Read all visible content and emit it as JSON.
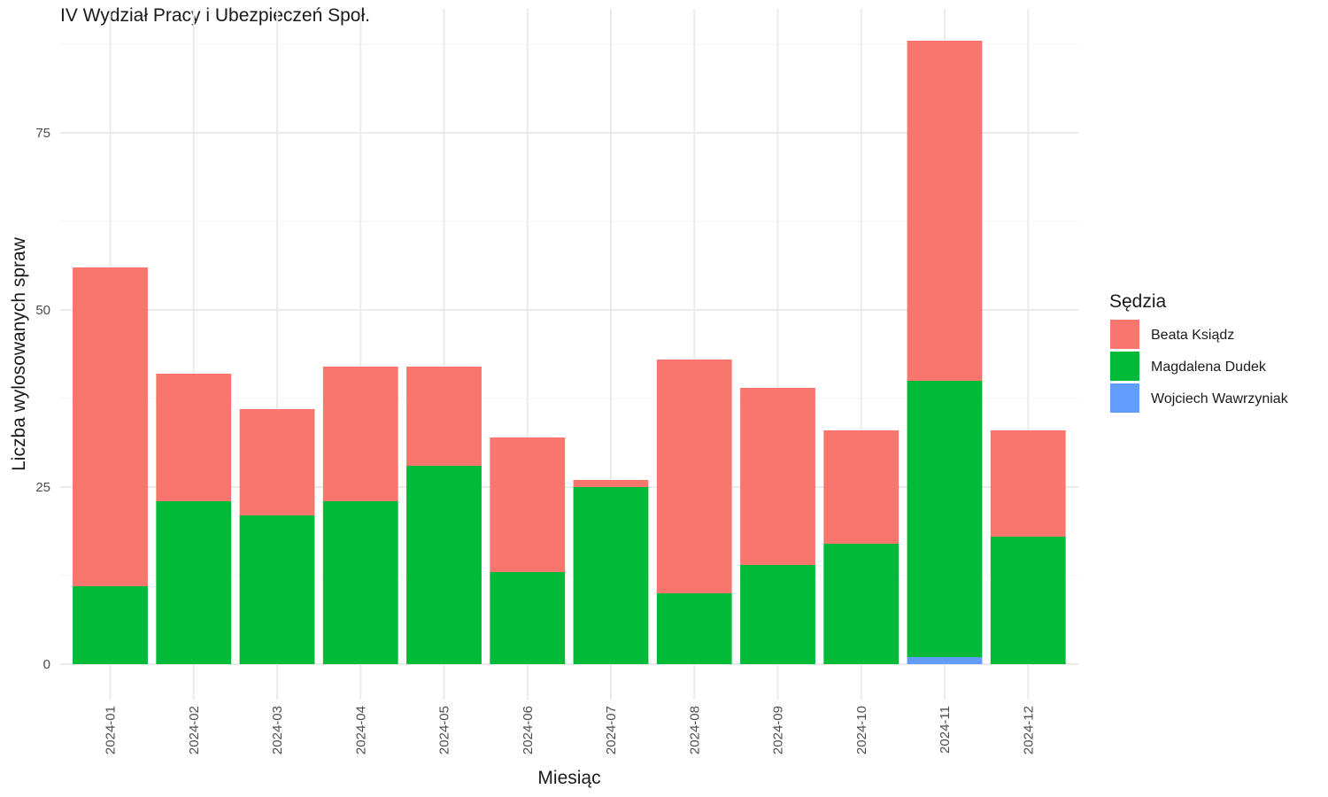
{
  "chart_data": {
    "type": "bar",
    "stacked": true,
    "title": "IV Wydział Pracy i Ubezpieczeń Społ.",
    "xlabel": "Miesiąc",
    "ylabel": "Liczba wylosowanych spraw",
    "categories": [
      "2024-01",
      "2024-02",
      "2024-03",
      "2024-04",
      "2024-05",
      "2024-06",
      "2024-07",
      "2024-08",
      "2024-09",
      "2024-10",
      "2024-11",
      "2024-12"
    ],
    "series": [
      {
        "name": "Beata Ksiądz",
        "color": "#F8766D",
        "values": [
          45,
          18,
          15,
          19,
          14,
          19,
          1,
          33,
          25,
          16,
          48,
          15
        ]
      },
      {
        "name": "Magdalena Dudek",
        "color": "#00BA38",
        "values": [
          11,
          23,
          21,
          23,
          28,
          13,
          25,
          10,
          14,
          17,
          39,
          18
        ]
      },
      {
        "name": "Wojciech Wawrzyniak",
        "color": "#619CFF",
        "values": [
          0,
          0,
          0,
          0,
          0,
          0,
          0,
          0,
          0,
          0,
          1,
          0
        ]
      }
    ],
    "yticks": [
      0,
      25,
      50,
      75
    ],
    "ylim": [
      0,
      90
    ],
    "grid": true,
    "legend_title": "Sędzia",
    "legend_position": "right"
  }
}
